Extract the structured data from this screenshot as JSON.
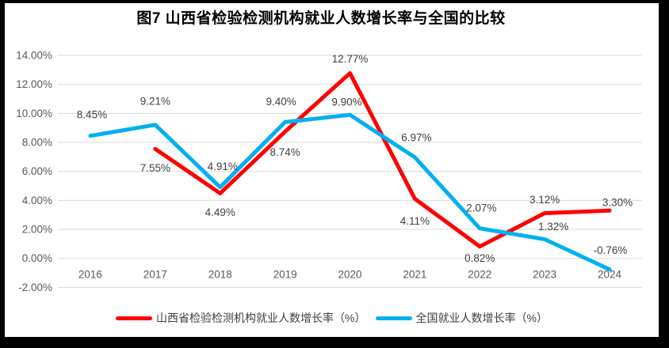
{
  "chart_data": {
    "type": "line",
    "title": "图7 山西省检验检测机构就业人数增长率与全国的比较",
    "categories": [
      "2016",
      "2017",
      "2018",
      "2019",
      "2020",
      "2021",
      "2022",
      "2023",
      "2024"
    ],
    "series": [
      {
        "key": "shanxi",
        "name": "山西省检验检测机构就业人数增长率（%）",
        "color": "#FF0000",
        "values": [
          null,
          7.55,
          4.49,
          8.74,
          12.77,
          4.11,
          0.82,
          3.12,
          3.3
        ],
        "label_offsets": [
          [
            0,
            0
          ],
          [
            0,
            24
          ],
          [
            0,
            24
          ],
          [
            0,
            26
          ],
          [
            0,
            -18
          ],
          [
            0,
            28
          ],
          [
            0,
            15
          ],
          [
            0,
            -17
          ],
          [
            10,
            -10
          ]
        ]
      },
      {
        "key": "national",
        "name": "全国就业人数增长率（%）",
        "color": "#00B0F0",
        "values": [
          8.45,
          9.21,
          4.91,
          9.4,
          9.9,
          6.97,
          2.07,
          1.32,
          -0.76
        ],
        "label_offsets": [
          [
            2,
            -27
          ],
          [
            0,
            -30
          ],
          [
            3,
            -26
          ],
          [
            -5,
            -26
          ],
          [
            -4,
            -16
          ],
          [
            2,
            -25
          ],
          [
            2,
            -26
          ],
          [
            11,
            -16
          ],
          [
            1,
            -24
          ]
        ]
      }
    ],
    "ylim": [
      -2,
      14
    ],
    "ytick_step": 2,
    "ytick_labels": [
      "14.00%",
      "12.00%",
      "10.00%",
      "8.00%",
      "6.00%",
      "4.00%",
      "2.00%",
      "0.00%",
      "-2.00%"
    ],
    "grid": true,
    "legend_position": "bottom",
    "grid_color": "#D9D9D9",
    "axis_label_color": "#595959",
    "data_label_color": "#404040",
    "background_color": "#FFFFFF",
    "frame_color": "#000000",
    "line_width": 5
  }
}
